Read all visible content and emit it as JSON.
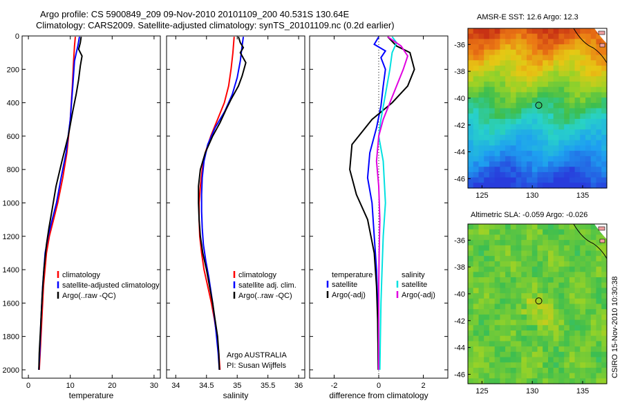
{
  "figure": {
    "title_line1": "Argo profile: CS 5900849_209 09-Nov-2010 20101109_200 40.531S 130.64E",
    "title_line2": "Climatology: CARS2009. Satellite-adjusted climatology: synTS_20101109.nc (0.2d earlier)",
    "side_label": "CSIRO 15-Nov-2010 10:30:38",
    "colors": {
      "climatology": "#ff0000",
      "satellite": "#0000ff",
      "argo": "#000000",
      "sat_cyan": "#00e0e0",
      "argo_magenta": "#e000e0"
    }
  },
  "chart_data": [
    {
      "id": "temperature",
      "type": "line",
      "xlabel": "temperature",
      "ylabel": "",
      "xlim": [
        -1.5,
        31.5
      ],
      "ylim": [
        2050,
        0
      ],
      "xticks": [
        0,
        10,
        20,
        30
      ],
      "yticks": [
        0,
        200,
        400,
        600,
        800,
        1000,
        1200,
        1400,
        1600,
        1800,
        2000
      ],
      "legend": {
        "position": "lower-right",
        "entries": [
          "climatology",
          "satellite-adjusted climatology",
          "Argo(..raw -QC)"
        ]
      },
      "series": [
        {
          "name": "climatology",
          "color": "#ff0000",
          "points": [
            [
              11.2,
              5
            ],
            [
              11,
              60
            ],
            [
              10.8,
              150
            ],
            [
              10.5,
              300
            ],
            [
              10,
              500
            ],
            [
              9.2,
              700
            ],
            [
              8.2,
              850
            ],
            [
              7,
              1000
            ],
            [
              6,
              1100
            ],
            [
              5,
              1200
            ],
            [
              4.3,
              1300
            ],
            [
              3.6,
              1500
            ],
            [
              3.2,
              1700
            ],
            [
              2.8,
              1900
            ],
            [
              2.6,
              2000
            ]
          ]
        },
        {
          "name": "satellite-adjusted climatology",
          "color": "#0000ff",
          "points": [
            [
              12.2,
              5
            ],
            [
              11.8,
              60
            ],
            [
              11,
              150
            ],
            [
              10.6,
              300
            ],
            [
              10,
              500
            ],
            [
              9,
              700
            ],
            [
              7.8,
              850
            ],
            [
              6.7,
              1000
            ],
            [
              5.7,
              1100
            ],
            [
              4.7,
              1200
            ],
            [
              4,
              1300
            ],
            [
              3.4,
              1500
            ],
            [
              3,
              1700
            ],
            [
              2.7,
              1900
            ],
            [
              2.5,
              2000
            ]
          ]
        },
        {
          "name": "Argo(..raw -QC)",
          "color": "#000000",
          "points": [
            [
              12.6,
              5
            ],
            [
              12.4,
              40
            ],
            [
              12,
              80
            ],
            [
              12.8,
              120
            ],
            [
              12.4,
              180
            ],
            [
              12,
              260
            ],
            [
              11.4,
              350
            ],
            [
              10.6,
              450
            ],
            [
              9.5,
              600
            ],
            [
              8,
              750
            ],
            [
              6.6,
              900
            ],
            [
              5.6,
              1050
            ],
            [
              4.9,
              1150
            ],
            [
              4.3,
              1250
            ],
            [
              3.7,
              1400
            ],
            [
              3.3,
              1550
            ],
            [
              2.9,
              1750
            ],
            [
              2.6,
              1900
            ],
            [
              2.5,
              2000
            ]
          ]
        }
      ]
    },
    {
      "id": "salinity",
      "type": "line",
      "xlabel": "salinity",
      "ylabel": "",
      "xlim": [
        33.85,
        36.1
      ],
      "ylim": [
        2050,
        0
      ],
      "xticks": [
        34,
        34.5,
        35,
        35.5,
        36
      ],
      "xtick_labels": [
        "34",
        "34.5",
        "35",
        "35.5",
        "36"
      ],
      "yticks": [
        0,
        200,
        400,
        600,
        800,
        1000,
        1200,
        1400,
        1600,
        1800,
        2000
      ],
      "legend": {
        "position": "lower-right",
        "entries": [
          "climatology",
          "satellite adj. clim.",
          "Argo(..raw -QC)"
        ]
      },
      "annotation_line1": "Argo AUSTRALIA",
      "annotation_line2": "PI: Susan Wijffels",
      "series": [
        {
          "name": "climatology",
          "color": "#ff0000",
          "points": [
            [
              34.95,
              5
            ],
            [
              34.93,
              100
            ],
            [
              34.9,
              200
            ],
            [
              34.86,
              300
            ],
            [
              34.79,
              400
            ],
            [
              34.68,
              500
            ],
            [
              34.57,
              600
            ],
            [
              34.48,
              700
            ],
            [
              34.43,
              800
            ],
            [
              34.4,
              900
            ],
            [
              34.38,
              1000
            ],
            [
              34.38,
              1100
            ],
            [
              34.39,
              1200
            ],
            [
              34.42,
              1300
            ],
            [
              34.46,
              1400
            ],
            [
              34.52,
              1500
            ],
            [
              34.58,
              1600
            ],
            [
              34.63,
              1700
            ],
            [
              34.67,
              1800
            ],
            [
              34.7,
              1900
            ],
            [
              34.72,
              2000
            ]
          ]
        },
        {
          "name": "satellite adj. clim.",
          "color": "#0000ff",
          "points": [
            [
              35.1,
              5
            ],
            [
              35.08,
              60
            ],
            [
              35.05,
              150
            ],
            [
              35,
              250
            ],
            [
              34.92,
              350
            ],
            [
              34.8,
              450
            ],
            [
              34.64,
              550
            ],
            [
              34.52,
              650
            ],
            [
              34.46,
              750
            ],
            [
              34.43,
              850
            ],
            [
              34.42,
              950
            ],
            [
              34.42,
              1050
            ],
            [
              34.43,
              1150
            ],
            [
              34.45,
              1250
            ],
            [
              34.49,
              1350
            ],
            [
              34.54,
              1450
            ],
            [
              34.6,
              1600
            ],
            [
              34.65,
              1750
            ],
            [
              34.69,
              1900
            ],
            [
              34.71,
              2000
            ]
          ]
        },
        {
          "name": "Argo(..raw -QC)",
          "color": "#000000",
          "points": [
            [
              35.02,
              5
            ],
            [
              35.05,
              40
            ],
            [
              35.1,
              70
            ],
            [
              35.05,
              100
            ],
            [
              35.14,
              160
            ],
            [
              35.08,
              240
            ],
            [
              35.02,
              300
            ],
            [
              34.9,
              380
            ],
            [
              34.82,
              440
            ],
            [
              34.72,
              520
            ],
            [
              34.6,
              600
            ],
            [
              34.48,
              700
            ],
            [
              34.4,
              800
            ],
            [
              34.37,
              900
            ],
            [
              34.37,
              1000
            ],
            [
              34.38,
              1100
            ],
            [
              34.4,
              1200
            ],
            [
              34.44,
              1300
            ],
            [
              34.5,
              1400
            ],
            [
              34.55,
              1500
            ],
            [
              34.6,
              1600
            ],
            [
              34.64,
              1700
            ],
            [
              34.68,
              1800
            ],
            [
              34.7,
              1900
            ],
            [
              34.71,
              2000
            ]
          ]
        }
      ]
    },
    {
      "id": "difference",
      "type": "line",
      "xlabel": "difference from climatology",
      "ylabel": "",
      "xlim": [
        -3.1,
        3.1
      ],
      "ylim": [
        2050,
        0
      ],
      "xticks": [
        -2,
        0,
        2
      ],
      "yticks": [
        0,
        200,
        400,
        600,
        800,
        1000,
        1200,
        1400,
        1600,
        1800,
        2000
      ],
      "zero_line": true,
      "legend": {
        "position": "lower",
        "temperature_header": "temperature",
        "salinity_header": "salinity",
        "temperature_entries": [
          "satellite",
          "Argo(-adj)"
        ],
        "salinity_entries": [
          "satellite",
          "Argo(-adj)"
        ]
      },
      "series": [
        {
          "name": "temperature satellite",
          "color": "#0000ff",
          "points": [
            [
              0,
              5
            ],
            [
              -0.2,
              50
            ],
            [
              0.3,
              90
            ],
            [
              0.1,
              130
            ],
            [
              0.3,
              200
            ],
            [
              0.2,
              300
            ],
            [
              0.1,
              420
            ],
            [
              -0.1,
              550
            ],
            [
              -0.4,
              700
            ],
            [
              -0.5,
              850
            ],
            [
              -0.3,
              1000
            ],
            [
              -0.2,
              1200
            ],
            [
              -0.1,
              1400
            ],
            [
              -0.05,
              1600
            ],
            [
              -0.02,
              2000
            ]
          ]
        },
        {
          "name": "temperature Argo(-adj)",
          "color": "#000000",
          "points": [
            [
              0.4,
              5
            ],
            [
              0.8,
              60
            ],
            [
              1.4,
              100
            ],
            [
              1.6,
              200
            ],
            [
              1.3,
              300
            ],
            [
              0.6,
              400
            ],
            [
              -0.3,
              500
            ],
            [
              -1.2,
              650
            ],
            [
              -1.3,
              800
            ],
            [
              -1,
              950
            ],
            [
              -0.5,
              1100
            ],
            [
              -0.2,
              1300
            ],
            [
              -0.1,
              1500
            ],
            [
              -0.05,
              1700
            ],
            [
              -0.02,
              2000
            ]
          ]
        },
        {
          "name": "salinity satellite",
          "color": "#00e0e0",
          "points": [
            [
              0.6,
              5
            ],
            [
              0.8,
              40
            ],
            [
              0.6,
              100
            ],
            [
              0.5,
              200
            ],
            [
              0.3,
              350
            ],
            [
              0.1,
              500
            ],
            [
              0,
              600
            ],
            [
              0.2,
              750
            ],
            [
              0.3,
              1000
            ],
            [
              0.2,
              1200
            ],
            [
              0.15,
              1400
            ],
            [
              0.1,
              1600
            ],
            [
              0.05,
              2000
            ]
          ]
        },
        {
          "name": "salinity Argo(-adj)",
          "color": "#e000e0",
          "points": [
            [
              0.4,
              5
            ],
            [
              1,
              60
            ],
            [
              1.3,
              120
            ],
            [
              1.1,
              200
            ],
            [
              0.8,
              300
            ],
            [
              0.5,
              400
            ],
            [
              0.2,
              500
            ],
            [
              0,
              600
            ],
            [
              -0.1,
              750
            ],
            [
              0,
              900
            ],
            [
              0.05,
              1100
            ],
            [
              0.02,
              1300
            ],
            [
              0,
              1500
            ],
            [
              0,
              2000
            ]
          ]
        }
      ]
    },
    {
      "id": "sst-map",
      "type": "heatmap",
      "title": "AMSR-E SST: 12.6  Argo: 12.3",
      "xlim": [
        123.6,
        137.4
      ],
      "ylim": [
        -46.7,
        -34.8
      ],
      "xticks": [
        125,
        130,
        135
      ],
      "yticks": [
        -36,
        -38,
        -40,
        -42,
        -44,
        -46
      ],
      "marker": {
        "lon": 130.64,
        "lat": -40.531
      }
    },
    {
      "id": "sla-map",
      "type": "heatmap",
      "title": "Altimetric SLA: -0.059  Argo: -0.026",
      "xlim": [
        123.6,
        137.4
      ],
      "ylim": [
        -46.7,
        -34.8
      ],
      "xticks": [
        125,
        130,
        135
      ],
      "yticks": [
        -36,
        -38,
        -40,
        -42,
        -44,
        -46
      ],
      "marker": {
        "lon": 130.64,
        "lat": -40.531
      }
    }
  ]
}
